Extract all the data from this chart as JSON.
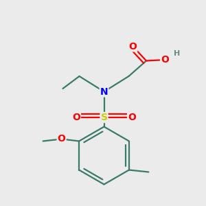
{
  "background_color": "#ebebeb",
  "atom_colors": {
    "C": "#3a7a6a",
    "N": "#0000ff",
    "O": "#ff0000",
    "S": "#cccc00",
    "H": "#6a8a8a"
  },
  "bond_color": "#3a7a6a",
  "bond_width": 1.6,
  "title": "",
  "figsize": [
    3.0,
    3.0
  ],
  "dpi": 100,
  "xlim": [
    0,
    10
  ],
  "ylim": [
    0,
    10
  ]
}
